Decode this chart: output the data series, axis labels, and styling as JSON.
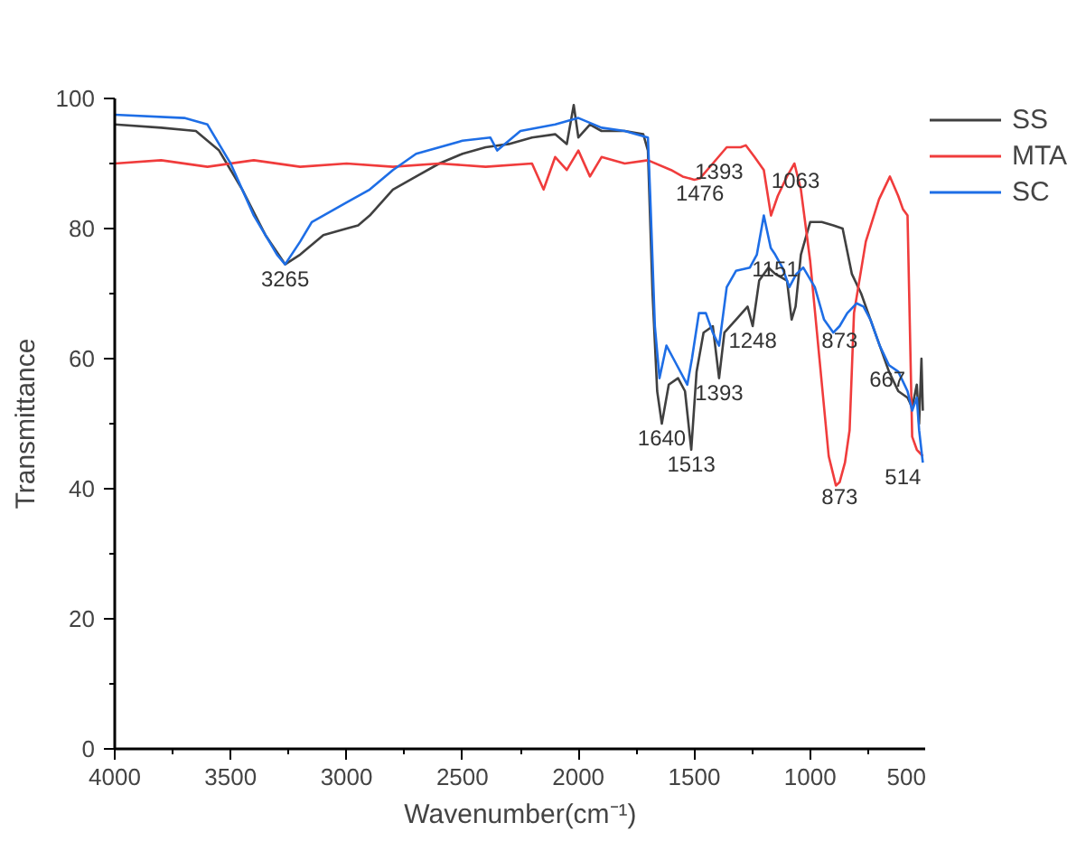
{
  "chart_data": {
    "type": "line",
    "xlabel": "Wavenumber(cm⁻¹)",
    "ylabel": "Transmittance",
    "xlim": [
      4000,
      500
    ],
    "ylim": [
      0,
      100
    ],
    "xticks": [
      4000,
      {
        "value": 3750,
        "label": null
      },
      3500,
      {
        "value": 3250,
        "label": null
      },
      3000,
      {
        "value": 2750,
        "label": null
      },
      2500,
      {
        "value": 2250,
        "label": null
      },
      2000,
      {
        "value": 1750,
        "label": null
      },
      1500,
      {
        "value": 1250,
        "label": null
      },
      1000,
      {
        "value": 750,
        "label": null
      },
      500
    ],
    "yticks": [
      0,
      {
        "value": 10,
        "label": null
      },
      20,
      {
        "value": 30,
        "label": null
      },
      40,
      {
        "value": 50,
        "label": null
      },
      60,
      {
        "value": 70,
        "label": null
      },
      80,
      {
        "value": 90,
        "label": null
      },
      100
    ],
    "grid": false,
    "legend": "top right",
    "line_style": "solid",
    "marker": "none",
    "series": [
      {
        "name": "SS",
        "color": "#404040",
        "x": [
          4000,
          3800,
          3650,
          3550,
          3450,
          3350,
          3265,
          3200,
          3100,
          3000,
          2950,
          2900,
          2800,
          2700,
          2600,
          2500,
          2400,
          2300,
          2200,
          2100,
          2050,
          2020,
          2000,
          1950,
          1900,
          1800,
          1720,
          1700,
          1680,
          1660,
          1640,
          1610,
          1570,
          1540,
          1513,
          1490,
          1460,
          1420,
          1393,
          1370,
          1320,
          1270,
          1248,
          1220,
          1180,
          1150,
          1100,
          1080,
          1063,
          1040,
          1000,
          950,
          900,
          860,
          820,
          780,
          750,
          700,
          660,
          620,
          580,
          560,
          540,
          530,
          520,
          514
        ],
        "values": [
          96,
          95.5,
          95,
          92,
          86,
          79,
          74.5,
          76,
          79,
          80,
          80.5,
          82,
          86,
          88,
          90,
          91.5,
          92.5,
          93,
          94,
          94.5,
          93,
          99,
          94,
          96,
          95,
          95,
          94.5,
          92,
          70,
          55,
          50,
          56,
          57,
          55,
          46,
          58,
          64,
          65,
          57,
          64,
          66,
          68,
          65,
          72,
          74,
          73,
          72,
          66,
          68,
          76,
          81,
          81,
          80.5,
          80,
          73,
          70,
          67,
          62,
          58,
          55,
          54,
          52.5,
          56,
          50,
          60,
          52
        ]
      },
      {
        "name": "MTA",
        "color": "#f03c3c",
        "x": [
          4000,
          3800,
          3600,
          3400,
          3200,
          3000,
          2800,
          2600,
          2400,
          2200,
          2150,
          2100,
          2050,
          2000,
          1950,
          1900,
          1800,
          1700,
          1600,
          1550,
          1500,
          1476,
          1420,
          1360,
          1300,
          1278,
          1240,
          1200,
          1169,
          1140,
          1100,
          1068,
          1040,
          1000,
          960,
          920,
          889,
          873,
          850,
          830,
          811,
          760,
          703,
          656,
          620,
          600,
          580,
          560,
          540,
          514
        ],
        "values": [
          90,
          90.5,
          89.5,
          90.5,
          89.5,
          90,
          89.5,
          90,
          89.5,
          90,
          86,
          91,
          89,
          92,
          88,
          91,
          90,
          90.5,
          89,
          88,
          87.5,
          87.7,
          90,
          92.5,
          92.5,
          92.8,
          91,
          89,
          82,
          85,
          88,
          90,
          86,
          75,
          60,
          45,
          40.5,
          41,
          44,
          49,
          67,
          78,
          84.5,
          88,
          85,
          83,
          82,
          48,
          46,
          45
        ]
      },
      {
        "name": "SC",
        "color": "#1e6ee6",
        "x": [
          4000,
          3700,
          3600,
          3500,
          3400,
          3300,
          3265,
          3200,
          3150,
          3050,
          3000,
          2900,
          2800,
          2700,
          2500,
          2380,
          2350,
          2250,
          2100,
          2000,
          1900,
          1800,
          1700,
          1690,
          1670,
          1650,
          1620,
          1590,
          1530,
          1510,
          1480,
          1450,
          1420,
          1393,
          1360,
          1320,
          1260,
          1230,
          1200,
          1170,
          1151,
          1120,
          1090,
          1060,
          1030,
          980,
          940,
          900,
          873,
          840,
          800,
          770,
          740,
          700,
          660,
          620,
          580,
          560,
          540,
          530,
          514
        ],
        "values": [
          97.5,
          97,
          96,
          90,
          82,
          76,
          74.5,
          78,
          81,
          83,
          84,
          86,
          89,
          91.5,
          93.5,
          94,
          92,
          95,
          96,
          97,
          95.5,
          95,
          94,
          85,
          65,
          57,
          62,
          60,
          56,
          60,
          67,
          67,
          64,
          62,
          71,
          73.5,
          74,
          76,
          82,
          77,
          76,
          74,
          71,
          73,
          74,
          71,
          66,
          64,
          65,
          67,
          68.5,
          68,
          66,
          62,
          59,
          58,
          55,
          52,
          54,
          49,
          44
        ]
      }
    ],
    "annotations": [
      {
        "text": "3265",
        "x": 3265,
        "y": 74.5
      },
      {
        "text": "1640",
        "x": 1640,
        "y": 50
      },
      {
        "text": "1513",
        "x": 1513,
        "y": 46
      },
      {
        "text": "1393",
        "x": 1393,
        "y": 57
      },
      {
        "text": "1248",
        "x": 1248,
        "y": 65
      },
      {
        "text": "1151",
        "x": 1151,
        "y": 76
      },
      {
        "text": "873",
        "x": 873,
        "y": 65
      },
      {
        "text": "667",
        "x": 667,
        "y": 59
      },
      {
        "text": "514",
        "x": 514,
        "y": 44
      },
      {
        "text": "873",
        "x": 873,
        "y": 41
      },
      {
        "text": "1476",
        "x": 1476,
        "y": 87.7
      },
      {
        "text": "1393",
        "x": 1393,
        "y": 91
      },
      {
        "text": "1063",
        "x": 1063,
        "y": 89.6
      }
    ]
  }
}
